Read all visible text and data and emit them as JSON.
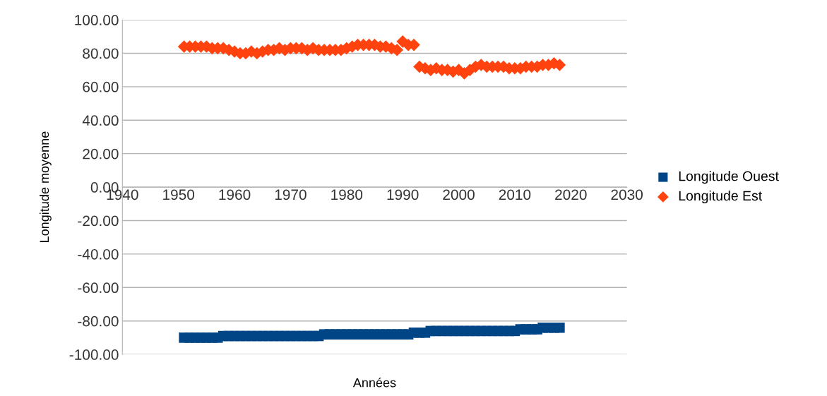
{
  "chart_data": {
    "type": "scatter",
    "xlabel": "Années",
    "ylabel": "Longitude moyenne",
    "x": [
      1951,
      1952,
      1953,
      1954,
      1955,
      1956,
      1957,
      1958,
      1959,
      1960,
      1961,
      1962,
      1963,
      1964,
      1965,
      1966,
      1967,
      1968,
      1969,
      1970,
      1971,
      1972,
      1973,
      1974,
      1975,
      1976,
      1977,
      1978,
      1979,
      1980,
      1981,
      1982,
      1983,
      1984,
      1985,
      1986,
      1987,
      1988,
      1989,
      1990,
      1991,
      1992,
      1993,
      1994,
      1995,
      1996,
      1997,
      1998,
      1999,
      2000,
      2001,
      2002,
      2003,
      2004,
      2005,
      2006,
      2007,
      2008,
      2009,
      2010,
      2011,
      2012,
      2013,
      2014,
      2015,
      2016,
      2017,
      2018
    ],
    "series": [
      {
        "name": "Longitude Ouest",
        "color": "#004586",
        "marker": "square",
        "values": [
          -90,
          -90,
          -90,
          -90,
          -90,
          -90,
          -90,
          -89,
          -89,
          -89,
          -89,
          -89,
          -89,
          -89,
          -89,
          -89,
          -89,
          -89,
          -89,
          -89,
          -89,
          -89,
          -89,
          -89,
          -89,
          -88,
          -88,
          -88,
          -88,
          -88,
          -88,
          -88,
          -88,
          -88,
          -88,
          -88,
          -88,
          -88,
          -88,
          -88,
          -88,
          -87,
          -87,
          -87,
          -86,
          -86,
          -86,
          -86,
          -86,
          -86,
          -86,
          -86,
          -86,
          -86,
          -86,
          -86,
          -86,
          -86,
          -86,
          -86,
          -85,
          -85,
          -85,
          -85,
          -84,
          -84,
          -84,
          -84
        ]
      },
      {
        "name": "Longitude Est",
        "color": "#ff420e",
        "marker": "diamond",
        "values": [
          84,
          84,
          84,
          84,
          84,
          83,
          83,
          83,
          82,
          81,
          80,
          80,
          81,
          80,
          81,
          82,
          82,
          83,
          82,
          83,
          83,
          83,
          82,
          83,
          82,
          82,
          82,
          82,
          82,
          83,
          84,
          85,
          85,
          85,
          85,
          84,
          84,
          83,
          82,
          87,
          85,
          85,
          72,
          71,
          70,
          71,
          70,
          70,
          69,
          70,
          68,
          70,
          72,
          73,
          72,
          72,
          72,
          72,
          71,
          71,
          71,
          72,
          72,
          72,
          73,
          73,
          74,
          73
        ]
      }
    ],
    "xlim": [
      1940,
      2030
    ],
    "xticks": [
      1940,
      1950,
      1960,
      1970,
      1980,
      1990,
      2000,
      2010,
      2020,
      2030
    ],
    "ylim": [
      -100,
      100
    ],
    "yticks": [
      {
        "value": 100,
        "label": "100.00"
      },
      {
        "value": 80,
        "label": "80.00"
      },
      {
        "value": 60,
        "label": "60.00"
      },
      {
        "value": 40,
        "label": "40.00"
      },
      {
        "value": 20,
        "label": "20.00"
      },
      {
        "value": 0,
        "label": "0.00"
      },
      {
        "value": -20,
        "label": "-20.00"
      },
      {
        "value": -40,
        "label": "-40.00"
      },
      {
        "value": -60,
        "label": "-60.00"
      },
      {
        "value": -80,
        "label": "-80.00"
      },
      {
        "value": -100,
        "label": "-100.00"
      }
    ],
    "grid": "y",
    "legend": "right"
  }
}
